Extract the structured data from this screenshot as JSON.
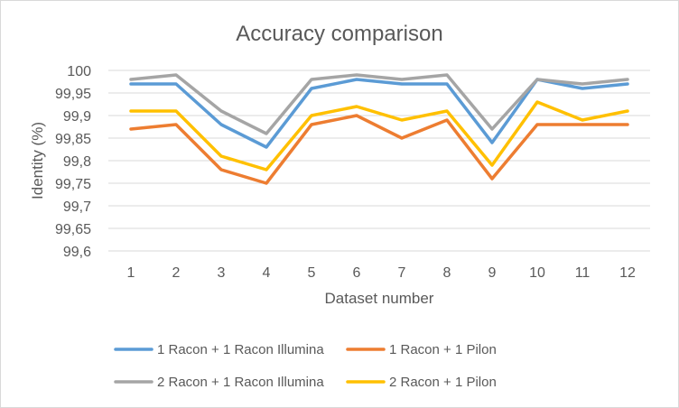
{
  "chart_data": {
    "type": "line",
    "title": "Accuracy comparison",
    "xlabel": "Dataset number",
    "ylabel": "Identity (%)",
    "categories": [
      "1",
      "2",
      "3",
      "4",
      "5",
      "6",
      "7",
      "8",
      "9",
      "10",
      "11",
      "12"
    ],
    "ylim": [
      99.6,
      100
    ],
    "yticks": [
      99.6,
      99.65,
      99.7,
      99.75,
      99.8,
      99.85,
      99.9,
      99.95,
      100
    ],
    "ytick_labels": [
      "99,6",
      "99,65",
      "99,7",
      "99,75",
      "99,8",
      "99,85",
      "99,9",
      "99,95",
      "100"
    ],
    "grid": true,
    "legend_position": "bottom",
    "series": [
      {
        "name": "1 Racon + 1 Racon Illumina",
        "color": "#5b9bd5",
        "values": [
          99.97,
          99.97,
          99.88,
          99.83,
          99.96,
          99.98,
          99.97,
          99.97,
          99.84,
          99.98,
          99.96,
          99.97
        ]
      },
      {
        "name": "1 Racon + 1 Pilon",
        "color": "#ed7d31",
        "values": [
          99.87,
          99.88,
          99.78,
          99.75,
          99.88,
          99.9,
          99.85,
          99.89,
          99.76,
          99.88,
          99.88,
          99.88
        ]
      },
      {
        "name": "2 Racon + 1 Racon Illumina",
        "color": "#a5a5a5",
        "values": [
          99.98,
          99.99,
          99.91,
          99.86,
          99.98,
          99.99,
          99.98,
          99.99,
          99.87,
          99.98,
          99.97,
          99.98
        ]
      },
      {
        "name": "2 Racon + 1 Pilon",
        "color": "#ffc000",
        "values": [
          99.91,
          99.91,
          99.81,
          99.78,
          99.9,
          99.92,
          99.89,
          99.91,
          99.79,
          99.93,
          99.89,
          99.91
        ]
      }
    ]
  }
}
